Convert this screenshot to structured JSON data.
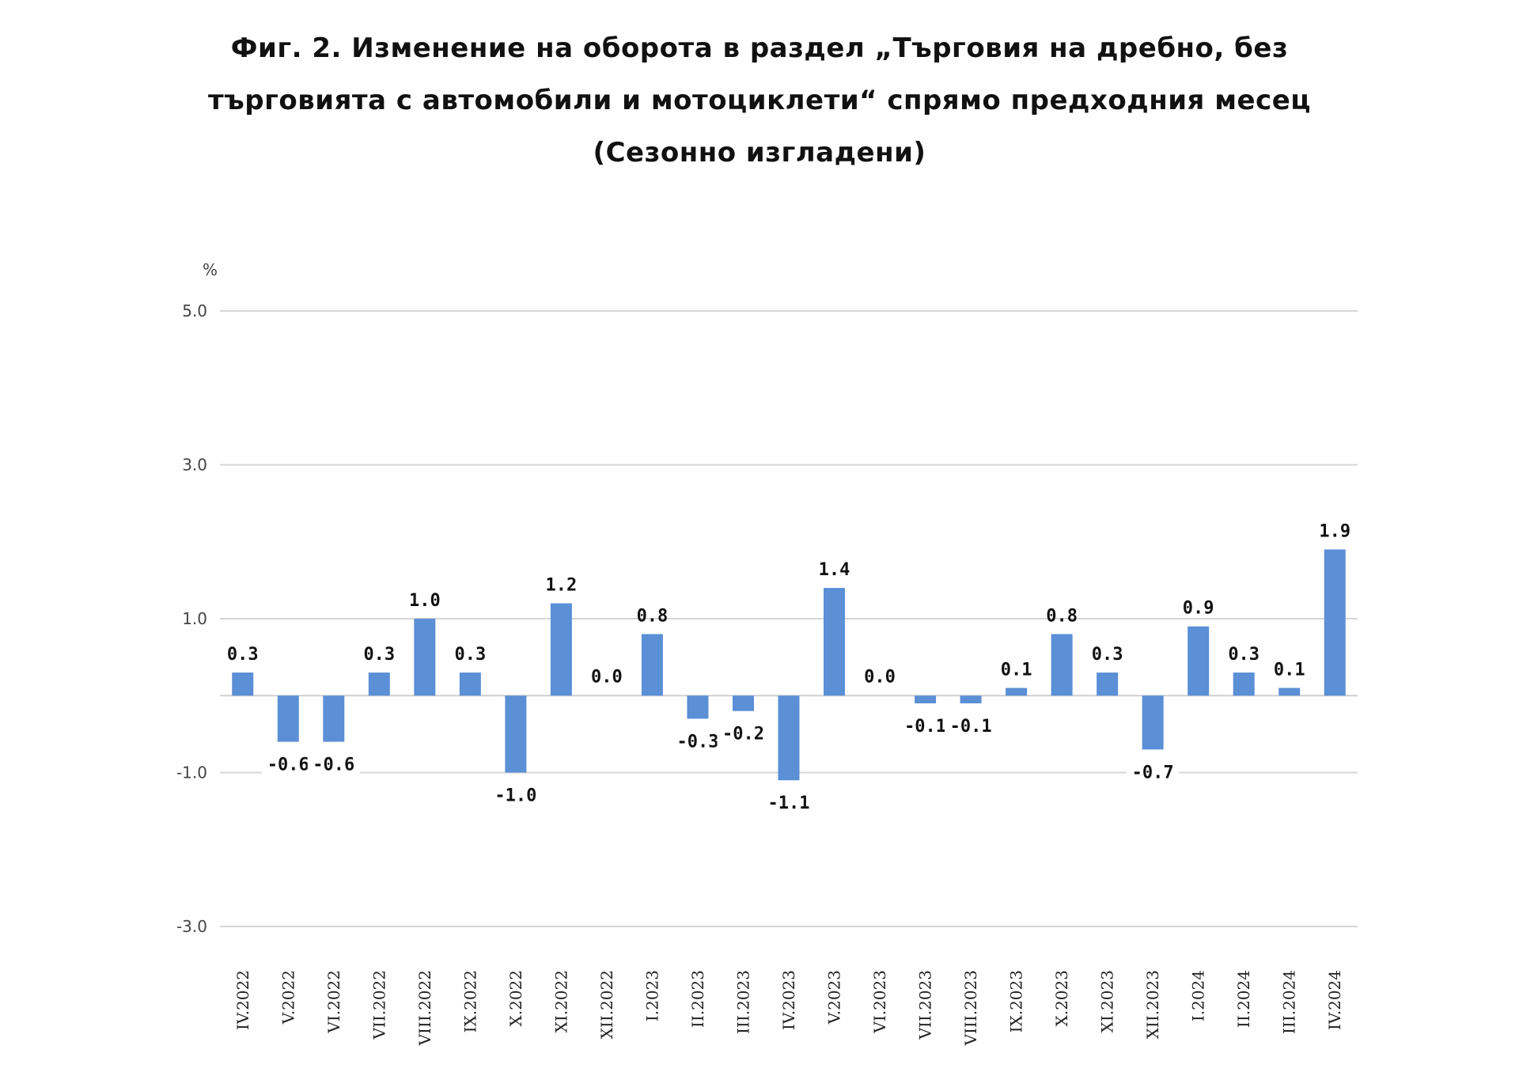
{
  "chart_data": {
    "type": "bar",
    "title_lines": [
      "Фиг. 2. Изменение на оборота в раздел „Търговия на дребно, без",
      "търговията с автомобили и мотоциклети“ спрямо предходния месец",
      "(Сезонно изгладени)"
    ],
    "ylabel": "%",
    "xlabel": "",
    "ylim": [
      -3.0,
      5.0
    ],
    "yticks": [
      5.0,
      3.0,
      1.0,
      -1.0,
      -3.0
    ],
    "ytick_labels": [
      "5.0",
      "3.0",
      "1.0",
      "-1.0",
      "-3.0"
    ],
    "grid": true,
    "legend": "none",
    "bar_color": "#5b8fd6",
    "categories": [
      "IV.2022",
      "V.2022",
      "VI.2022",
      "VII.2022",
      "VIII.2022",
      "IX.2022",
      "X.2022",
      "XI.2022",
      "XII.2022",
      "I.2023",
      "II.2023",
      "III.2023",
      "IV.2023",
      "V.2023",
      "VI.2023",
      "VII.2023",
      "VIII.2023",
      "IX.2023",
      "X.2023",
      "XI.2023",
      "XII.2023",
      "I.2024",
      "II.2024",
      "III.2024",
      "IV.2024"
    ],
    "values": [
      0.3,
      -0.6,
      -0.6,
      0.3,
      1.0,
      0.3,
      -1.0,
      1.2,
      0.0,
      0.8,
      -0.3,
      -0.2,
      -1.1,
      1.4,
      0.0,
      -0.1,
      -0.1,
      0.1,
      0.8,
      0.3,
      -0.7,
      0.9,
      0.3,
      0.1,
      1.9
    ],
    "value_labels": [
      "0.3",
      "-0.6",
      "-0.6",
      "0.3",
      "1.0",
      "0.3",
      "-1.0",
      "1.2",
      "0.0",
      "0.8",
      "-0.3",
      "-0.2",
      "-1.1",
      "1.4",
      "0.0",
      "-0.1",
      "-0.1",
      "0.1",
      "0.8",
      "0.3",
      "-0.7",
      "0.9",
      "0.3",
      "0.1",
      "1.9"
    ]
  }
}
